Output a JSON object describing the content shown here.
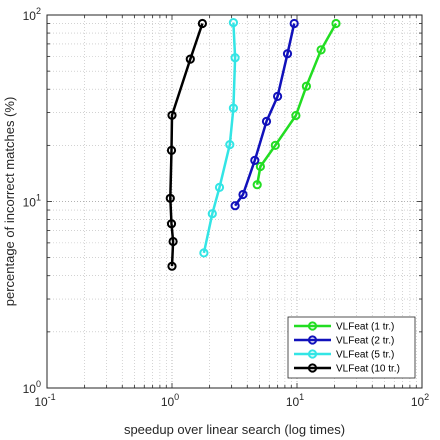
{
  "chart_data": {
    "type": "line",
    "title": "",
    "xlabel": "speedup over linear search (log times)",
    "ylabel": "percentage of incorrect matches (%)",
    "xscale": "log",
    "yscale": "log",
    "xlim": [
      0.1,
      100
    ],
    "ylim": [
      1,
      100
    ],
    "x_ticks": [
      {
        "value": 0.1,
        "base": "10",
        "exp": "-1"
      },
      {
        "value": 1,
        "base": "10",
        "exp": "0"
      },
      {
        "value": 10,
        "base": "10",
        "exp": "1"
      },
      {
        "value": 100,
        "base": "10",
        "exp": "2"
      }
    ],
    "y_ticks": [
      {
        "value": 1,
        "base": "10",
        "exp": "0"
      },
      {
        "value": 10,
        "base": "10",
        "exp": "1"
      },
      {
        "value": 100,
        "base": "10",
        "exp": "2"
      }
    ],
    "grid": true,
    "legend_position": "bottom-right",
    "series": [
      {
        "name": "VLFeat (1 tr.)",
        "color": "#22dd22",
        "x": [
          4.8,
          5.1,
          6.7,
          9.8,
          11.9,
          15.6,
          20.5
        ],
        "y": [
          12.3,
          15.4,
          20.0,
          28.9,
          41.5,
          65.0,
          90.0
        ]
      },
      {
        "name": "VLFeat (2 tr.)",
        "color": "#1111bb",
        "x": [
          3.2,
          3.7,
          4.6,
          5.7,
          7.0,
          8.4,
          9.5
        ],
        "y": [
          9.5,
          10.9,
          16.6,
          26.9,
          36.6,
          62.0,
          90.0
        ]
      },
      {
        "name": "VLFeat (5 tr.)",
        "color": "#33e5e5",
        "x": [
          1.8,
          2.1,
          2.4,
          2.9,
          3.1,
          3.2,
          3.1
        ],
        "y": [
          5.3,
          8.6,
          11.9,
          20.2,
          31.7,
          59.0,
          91.0
        ]
      },
      {
        "name": "VLFeat (10 tr.)",
        "color": "#000000",
        "x": [
          1.0,
          1.02,
          0.99,
          0.97,
          0.99,
          1.0,
          1.4,
          1.75
        ],
        "y": [
          4.5,
          6.1,
          7.6,
          10.4,
          18.8,
          29.0,
          58.0,
          90.0
        ]
      }
    ]
  }
}
